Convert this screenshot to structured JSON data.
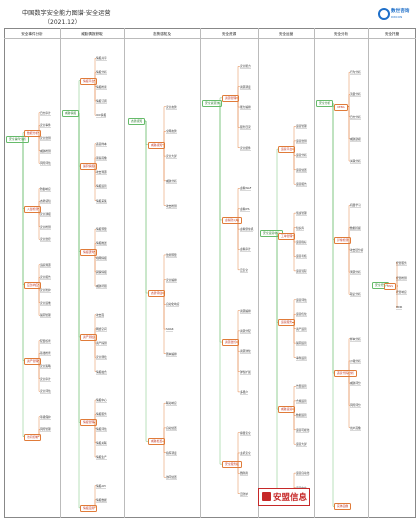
{
  "header": {
    "title": "中国数字安全能力图谱·安全运营",
    "subtitle": "（2021.12）",
    "logo_text": "数世咨询",
    "logo_sub": "DWCON"
  },
  "columns": [
    "安全事件分析",
    "威胁情报获取",
    "态势感知及",
    "安全资源",
    "安全运营",
    "安全分析",
    "安全托管"
  ],
  "brand": {
    "text": "安盟信息"
  },
  "items": {
    "col1": [
      "安全事件分析",
      "数据分析",
      "日志审计",
      "安全事件",
      "安全监测",
      "威胁检测",
      "风险评估",
      "入侵检测",
      "防御响应",
      "态势感知",
      "安全通报",
      "安全检测",
      "安全监控",
      "应急响应",
      "追踪溯源",
      "安全报告",
      "安全防护",
      "安全运维",
      "漏洞管理",
      "资产管理",
      "配置核查",
      "基线检查",
      "安全策略",
      "安全审计",
      "安全评估",
      "访问控制",
      "等级保护",
      "风险管理"
    ],
    "col2": [
      "威胁情报",
      "情报平台",
      "情报共享",
      "情报分析",
      "情报检索",
      "情报订阅",
      "IOC情报",
      "漏洞情报",
      "恶意样本",
      "黑客画像",
      "攻击溯源",
      "情报运营",
      "情报采集",
      "情报研判",
      "情报预警",
      "情报推送",
      "暗网情报",
      "舆情情报",
      "威胁狩猎",
      "资产测绘",
      "攻击面",
      "网络空间",
      "资产探测",
      "安全测绘",
      "情报融合",
      "情报管理",
      "情报中心",
      "情报服务",
      "情报评估",
      "情报关联",
      "情报生产",
      "情报应用",
      "情报API",
      "情报数据"
    ],
    "col3": [
      "态势感知",
      "威胁感知",
      "安全态势",
      "全网态势",
      "安全大屏",
      "威胁分析",
      "攻击检测",
      "态势评估",
      "监测预警",
      "安全编排",
      "自动化响应",
      "SOAR",
      "剧本编排",
      "威胁处置",
      "联动响应",
      "自动处置",
      "指挥调度",
      "协同处置"
    ],
    "col4": [
      "安全资源池",
      "资源管理",
      "安全能力",
      "资源调度",
      "能力编排",
      "服务目录",
      "安全组件",
      "虚拟防火墙",
      "虚拟WAF",
      "虚拟IPS",
      "虚拟堡垒机",
      "虚拟审计",
      "云安全",
      "资源监控",
      "资源编排",
      "资源分配",
      "资源池化",
      "弹性扩展",
      "多租户",
      "安全服务链",
      "容器安全",
      "主机安全",
      "微隔离",
      "云防护"
    ],
    "col5": [
      "安全运营中心",
      "运营平台",
      "运营管理",
      "运营监测",
      "运营分析",
      "运营处置",
      "运营报告",
      "工单管理",
      "值班管理",
      "知识库",
      "运营指标",
      "运营考核",
      "运营流程",
      "运营服务",
      "运营评估",
      "运营优化",
      "资产运营",
      "漏洞运营",
      "事件运营",
      "威胁运营",
      "告警运营",
      "合规运营",
      "数据运营",
      "运营可视化",
      "运营大屏",
      "运营协同",
      "运营自动化",
      "运营中台"
    ],
    "col6": [
      "安全分析",
      "UEBA",
      "行为分析",
      "流量分析",
      "日志分析",
      "威胁建模",
      "关联分析",
      "异常检测",
      "机器学习",
      "数据挖掘",
      "攻击链分析",
      "溯源分析",
      "取证分析",
      "恶意代码分析",
      "样本分析",
      "沙箱分析",
      "威胁评分",
      "风险评分",
      "用户画像",
      "实体画像"
    ],
    "col7": [
      "安全托管",
      "MSS",
      "托管服务",
      "托管检测",
      "托管响应",
      "MDR"
    ]
  }
}
